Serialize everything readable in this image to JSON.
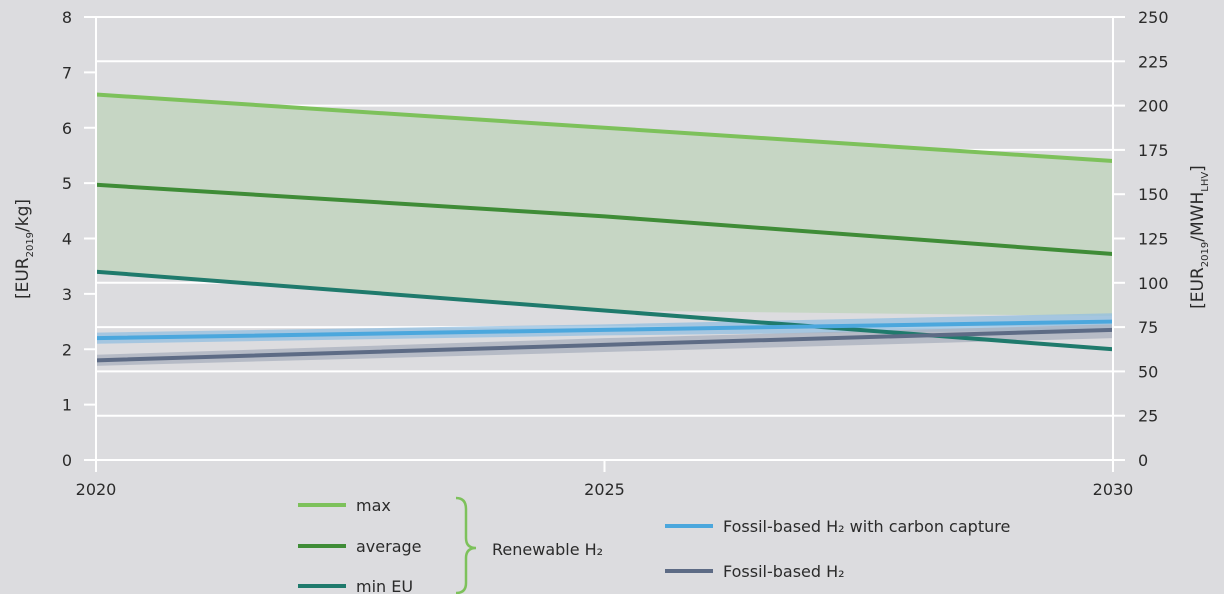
{
  "chart_data": {
    "type": "line",
    "x": [
      2020,
      2025,
      2030
    ],
    "xlim": [
      2020,
      2030
    ],
    "x_tick_labels": [
      "2020",
      "2025",
      "2030"
    ],
    "ylim": [
      0,
      8
    ],
    "y_tick_labels": [
      "0",
      "1",
      "2",
      "3",
      "4",
      "5",
      "6",
      "7",
      "8"
    ],
    "ylabel": {
      "main": "[EUR",
      "sub": "2019",
      "unit": "/kg]"
    },
    "y2lim": [
      0,
      250
    ],
    "y2_tick_labels": [
      "0",
      "25",
      "50",
      "75",
      "100",
      "125",
      "150",
      "175",
      "200",
      "225",
      "250"
    ],
    "y2label": {
      "main": "[EUR",
      "sub1": "2019",
      "mid": "/MWH",
      "sub2": "LHV",
      "end": "]"
    },
    "grid": true,
    "bands": [
      {
        "name": "Renewable H₂ range",
        "lower": [
          3.4,
          2.7,
          2.6
        ],
        "upper": [
          6.6,
          6.0,
          5.4
        ],
        "color": "#c6d6c4"
      },
      {
        "name": "Fossil-based H₂ with carbon capture range",
        "lower": [
          2.1,
          2.25,
          2.35
        ],
        "upper": [
          2.3,
          2.45,
          2.65
        ],
        "color": "#93bfe0"
      },
      {
        "name": "Fossil-based H₂ range",
        "lower": [
          1.7,
          1.95,
          2.2
        ],
        "upper": [
          1.9,
          2.2,
          2.45
        ],
        "color": "#a9b0be"
      }
    ],
    "series": [
      {
        "name": "max",
        "values": [
          6.6,
          6.0,
          5.4
        ],
        "color": "#7dc15b"
      },
      {
        "name": "average",
        "values": [
          4.97,
          4.4,
          3.72
        ],
        "color": "#3f8c37"
      },
      {
        "name": "min EU",
        "values": [
          3.4,
          2.7,
          2.0
        ],
        "color": "#1f7a6c"
      },
      {
        "name": "Fossil-based H₂ with carbon capture",
        "values": [
          2.2,
          2.35,
          2.5
        ],
        "color": "#4ba7dd"
      },
      {
        "name": "Fossil-based H₂",
        "values": [
          1.8,
          2.08,
          2.35
        ],
        "color": "#5d6b85"
      }
    ],
    "legend": {
      "group_label": "Renewable H₂",
      "group_items": [
        {
          "label": "max",
          "color": "#7dc15b"
        },
        {
          "label": "average",
          "color": "#3f8c37"
        },
        {
          "label": "min EU",
          "color": "#1f7a6c"
        }
      ],
      "other_items": [
        {
          "label": "Fossil-based H₂ with carbon capture",
          "color": "#4ba7dd"
        },
        {
          "label": "Fossil-based H₂",
          "color": "#5d6b85"
        }
      ],
      "bracket_color": "#7dc15b",
      "placement": "bottom"
    }
  }
}
